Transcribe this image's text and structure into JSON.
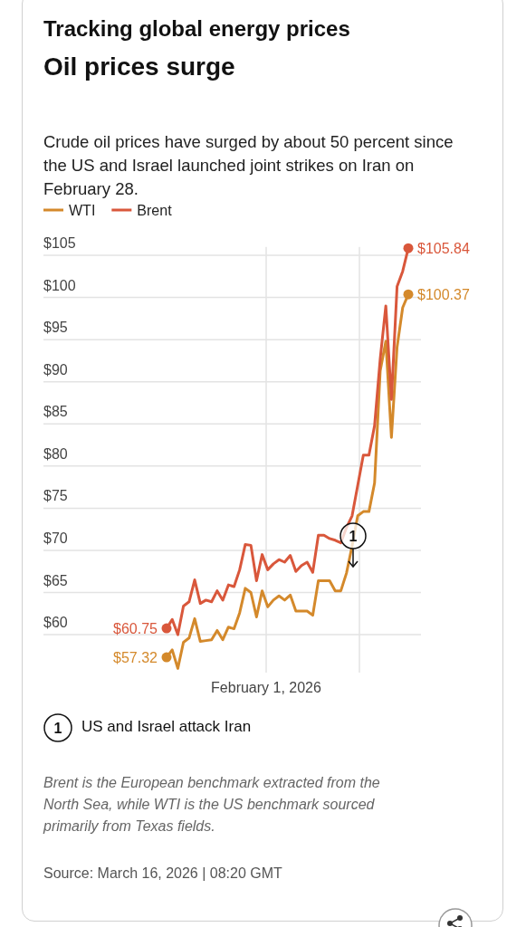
{
  "chart_data": {
    "type": "line",
    "title": "Tracking global energy prices",
    "subtitle": "Oil prices surge",
    "xlabel": "February 1, 2026",
    "legend": "top left",
    "grid": "y",
    "marker": "none",
    "line_style": "solid",
    "ylim": [
      55.5,
      106
    ],
    "categories": [
      null,
      null,
      null,
      null,
      null,
      null,
      null,
      null,
      null,
      null,
      null,
      null,
      null,
      null,
      null,
      null,
      null,
      null,
      null,
      null,
      null,
      null,
      null,
      null,
      null,
      null,
      null,
      null,
      null,
      null,
      null,
      null,
      null,
      null,
      null,
      null,
      null,
      null,
      null,
      null,
      null,
      null,
      null,
      null
    ],
    "yticks": [
      {
        "value": 60,
        "label": "$60"
      },
      {
        "value": 65,
        "label": "$65"
      },
      {
        "value": 70,
        "label": "$70"
      },
      {
        "value": 75,
        "label": "$75"
      },
      {
        "value": 80,
        "label": "$80"
      },
      {
        "value": 85,
        "label": "$85"
      },
      {
        "value": 90,
        "label": "$90"
      },
      {
        "value": 95,
        "label": "$95"
      },
      {
        "value": 100,
        "label": "$100"
      },
      {
        "value": 105,
        "label": "$105"
      }
    ],
    "series": [
      {
        "name": "WTI",
        "color": "#d4892b",
        "values": [
          57.32,
          58.2,
          56.0,
          59.1,
          59.6,
          61.9,
          59.2,
          59.3,
          59.4,
          60.5,
          59.4,
          60.9,
          60.7,
          62.6,
          65.5,
          65.0,
          62.1,
          65.2,
          63.3,
          64.1,
          64.6,
          64.1,
          64.7,
          62.8,
          62.8,
          62.8,
          62.3,
          66.4,
          66.4,
          66.4,
          65.2,
          65.2,
          67.3,
          70.5,
          74.1,
          74.6,
          74.6,
          78.0,
          91.3,
          94.8,
          83.4,
          94.1,
          98.8,
          100.37
        ],
        "value_labels": [
          "$57.32",
          null,
          null,
          null,
          null,
          null,
          null,
          null,
          null,
          null,
          null,
          null,
          null,
          null,
          null,
          null,
          null,
          null,
          null,
          null,
          null,
          null,
          null,
          null,
          null,
          null,
          null,
          null,
          null,
          null,
          null,
          null,
          null,
          null,
          null,
          null,
          null,
          null,
          null,
          null,
          null,
          null,
          null,
          "$100.37"
        ]
      },
      {
        "name": "Brent",
        "color": "#d9573b",
        "values": [
          60.75,
          61.8,
          60.0,
          63.4,
          63.9,
          66.5,
          63.7,
          64.1,
          63.9,
          65.2,
          64.1,
          65.9,
          65.7,
          67.7,
          70.7,
          70.6,
          66.4,
          69.5,
          67.7,
          68.4,
          68.9,
          68.6,
          69.4,
          67.5,
          68.2,
          68.6,
          67.4,
          71.8,
          71.8,
          71.4,
          71.2,
          70.9,
          72.7,
          74.1,
          77.7,
          81.3,
          81.3,
          84.8,
          92.7,
          99.0,
          87.9,
          101.3,
          103.1,
          105.84
        ],
        "value_labels": [
          "$60.75",
          null,
          null,
          null,
          null,
          null,
          null,
          null,
          null,
          null,
          null,
          null,
          null,
          null,
          null,
          null,
          null,
          null,
          null,
          null,
          null,
          null,
          null,
          null,
          null,
          null,
          null,
          null,
          null,
          null,
          null,
          null,
          null,
          null,
          null,
          null,
          null,
          null,
          null,
          null,
          null,
          null,
          null,
          "$105.84"
        ]
      }
    ],
    "annotations": [
      "Crude oil prices have surged by about 50 percent since the US and Israel launched joint strikes on Iran on February 28.",
      "1",
      "US and Israel attack Iran",
      "Brent is the European benchmark extracted from the North Sea, while WTI is the US benchmark sourced primarily from Texas fields.",
      "Source: March 16, 2026 | 08:20 GMT"
    ]
  }
}
